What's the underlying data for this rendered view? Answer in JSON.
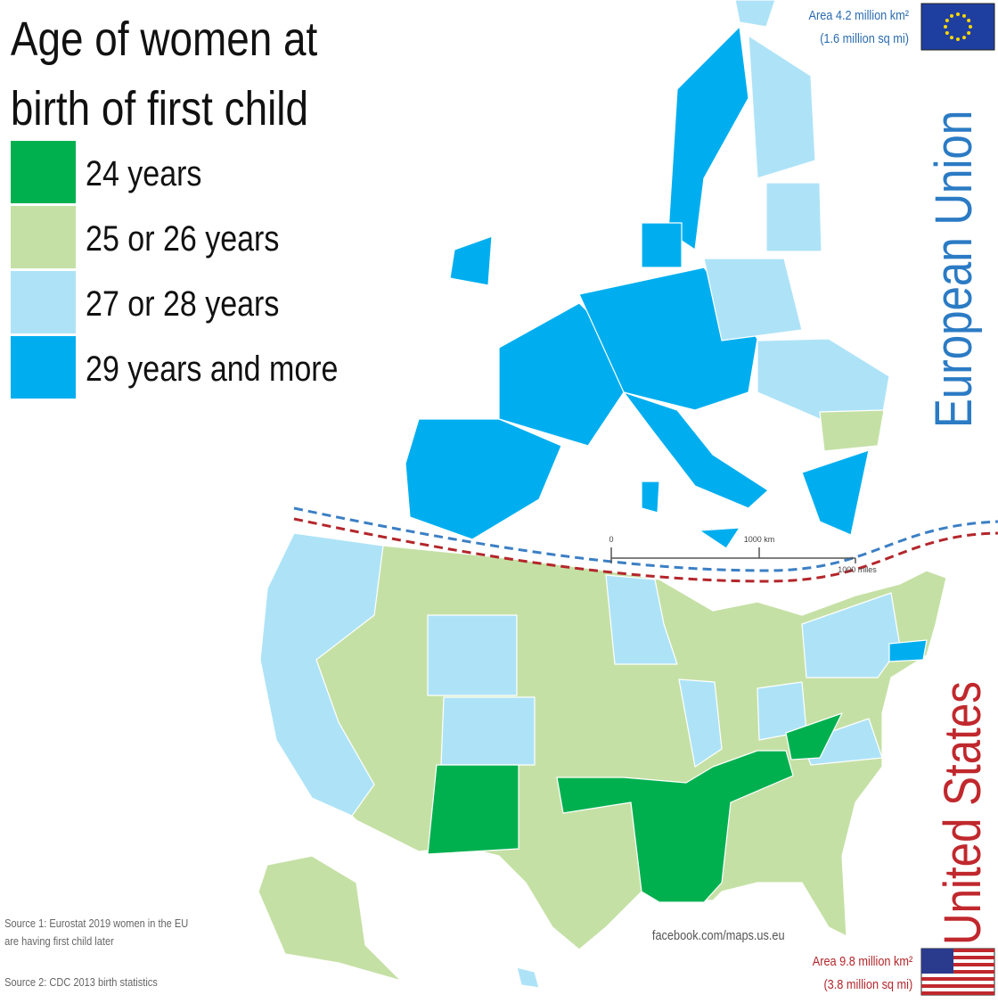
{
  "title_lines": [
    "Age of women at",
    "birth of first child"
  ],
  "legend": [
    {
      "label": "24 years",
      "color": "#00b04f"
    },
    {
      "label": "25 or 26 years",
      "color": "#c5e0a5"
    },
    {
      "label": "27 or 28 years",
      "color": "#aee3f7"
    },
    {
      "label": "29 years and more",
      "color": "#00aeef"
    }
  ],
  "eu": {
    "name": "European Union",
    "area": "Area 4.2 million km²",
    "area_sq_mi": "(1.6 million sq mi)"
  },
  "us": {
    "name": "United States",
    "area": "Area 9.8 million km²",
    "area_sq_mi": "(3.8 million sq mi)"
  },
  "scale": {
    "zero": "0",
    "km": "1000 km",
    "miles": "1000 miles"
  },
  "sources": [
    "Source 1: Eurostat 2019 women in the EU",
    "are having first child later",
    "Source 2: CDC 2013 birth statistics"
  ],
  "credit": "facebook.com/maps.us.eu"
}
